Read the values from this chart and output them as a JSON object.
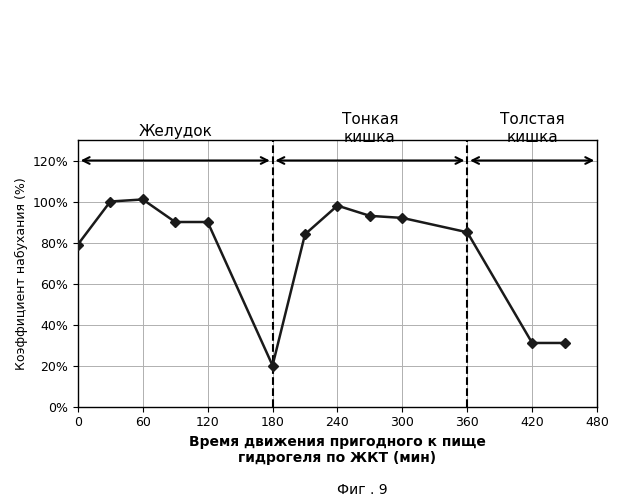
{
  "x": [
    0,
    30,
    60,
    90,
    120,
    180,
    210,
    240,
    270,
    300,
    360,
    420,
    450
  ],
  "y": [
    79,
    100,
    101,
    90,
    90,
    20,
    84,
    98,
    93,
    92,
    85,
    31,
    31
  ],
  "xlim": [
    0,
    480
  ],
  "ylim": [
    0,
    130
  ],
  "xticks": [
    0,
    60,
    120,
    180,
    240,
    300,
    360,
    420,
    480
  ],
  "ytick_vals": [
    0,
    20,
    40,
    60,
    80,
    100,
    120
  ],
  "ytick_labels": [
    "0%",
    "20%",
    "40%",
    "60%",
    "80%",
    "100%",
    "120%"
  ],
  "xlabel_line1": "Время движения пригодного к пище",
  "xlabel_line2": "гидрогеля по ЖКТ (мин)",
  "ylabel": "Коэффициент набухания (%)",
  "section1_label": "Желудок",
  "section2_label_line1": "Тонкая",
  "section2_label_line2": "кишка",
  "section3_label_line1": "Толстая",
  "section3_label_line2": "кишка",
  "vline1_x": 180,
  "vline2_x": 360,
  "line_color": "#1a1a1a",
  "marker_color": "#1a1a1a",
  "background_color": "#ffffff",
  "fig_caption": "Фиг . 9",
  "grid_color": "#b0b0b0"
}
